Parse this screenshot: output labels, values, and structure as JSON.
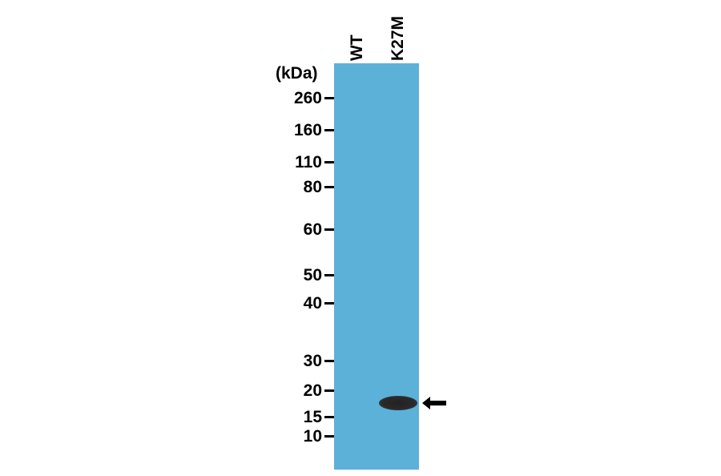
{
  "lanes": [
    "WT",
    "K27M"
  ],
  "unit_label": "(kDa)",
  "markers": [
    "260",
    "160",
    "110",
    "80",
    "60",
    "50",
    "40",
    "30",
    "20",
    "15",
    "10"
  ],
  "membrane_color": "#5cb1d9",
  "band": {
    "lane": "K27M",
    "approx_kda": "~17"
  },
  "arrow_icon": "arrow-left-icon"
}
